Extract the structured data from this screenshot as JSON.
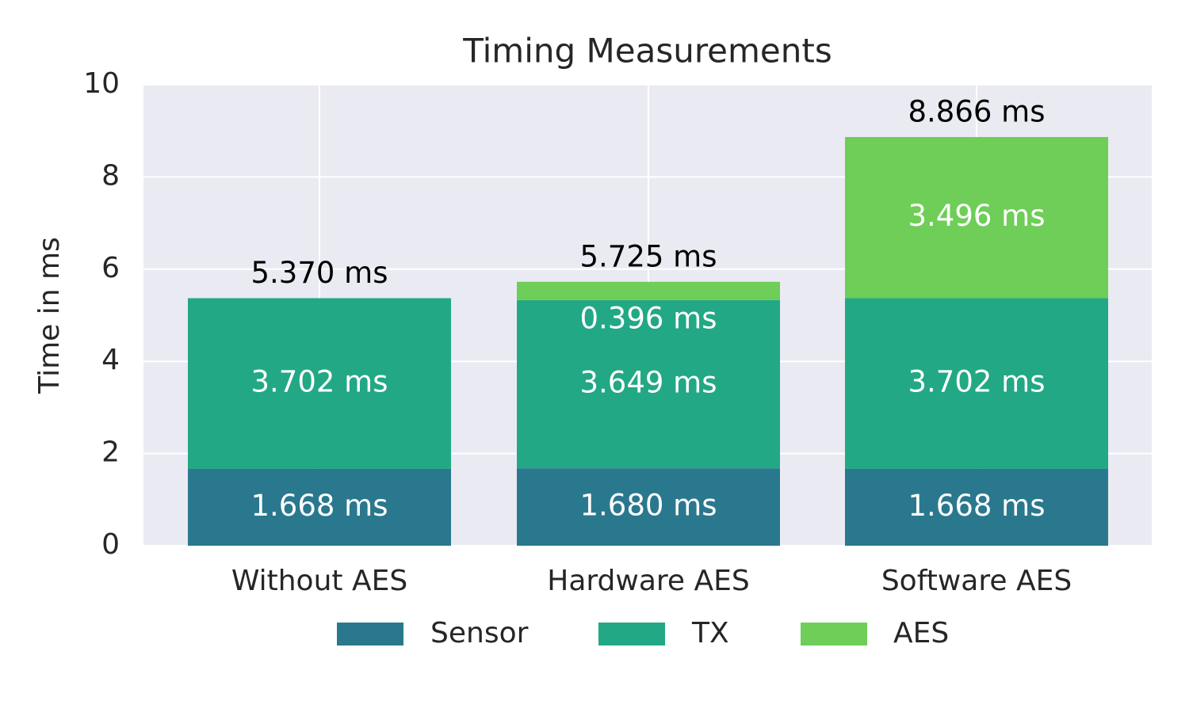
{
  "chart_data": {
    "type": "bar",
    "stacked": true,
    "title": "Timing Measurements",
    "xlabel": "",
    "ylabel": "Time in ms",
    "ylim": [
      0,
      10
    ],
    "yticks": [
      0,
      2,
      4,
      6,
      8,
      10
    ],
    "categories": [
      "Without AES",
      "Hardware AES",
      "Software AES"
    ],
    "series": [
      {
        "name": "Sensor",
        "color": "#2a788e",
        "values": [
          1.668,
          1.68,
          1.668
        ],
        "labels": [
          "1.668 ms",
          "1.680 ms",
          "1.668 ms"
        ]
      },
      {
        "name": "TX",
        "color": "#22a884",
        "values": [
          3.702,
          3.649,
          3.702
        ],
        "labels": [
          "3.702 ms",
          "3.649 ms",
          "3.702 ms"
        ]
      },
      {
        "name": "AES",
        "color": "#6ece58",
        "values": [
          0,
          0.396,
          3.496
        ],
        "labels": [
          "",
          "0.396 ms",
          "3.496 ms"
        ]
      }
    ],
    "totals": [
      5.37,
      5.725,
      8.866
    ],
    "total_labels": [
      "5.370 ms",
      "5.725 ms",
      "8.866 ms"
    ],
    "grid": true,
    "legend_position": "bottom-center",
    "plot_background": "#eaeaf2"
  }
}
